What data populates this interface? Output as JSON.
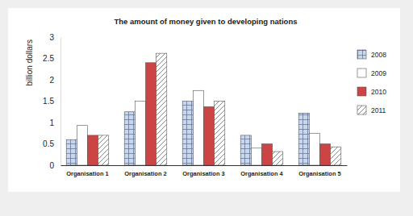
{
  "chart_data": {
    "type": "bar",
    "title": "The amount of money given to developing nations",
    "y_label": "billion dollars",
    "categories": [
      "Organisation 1",
      "Organisation 2",
      "Organisation 3",
      "Organisation 4",
      "Organisation 5"
    ],
    "series": [
      {
        "name": "2008",
        "color": "#c9d7ec",
        "values": [
          0.6,
          1.25,
          1.5,
          0.7,
          1.22
        ]
      },
      {
        "name": "2009",
        "color": "#ffffff",
        "values": [
          0.93,
          1.5,
          1.75,
          0.4,
          0.75
        ]
      },
      {
        "name": "2010",
        "color": "#cc4444",
        "values": [
          0.7,
          2.4,
          1.37,
          0.5,
          0.5
        ]
      },
      {
        "name": "2011",
        "color": "#ffffff",
        "values": [
          0.7,
          2.62,
          1.5,
          0.32,
          0.43
        ]
      }
    ],
    "ylim": [
      0,
      3
    ],
    "yticks": [
      0,
      0.5,
      1,
      1.5,
      2,
      2.5,
      3
    ],
    "grid": false,
    "legend": "right"
  }
}
